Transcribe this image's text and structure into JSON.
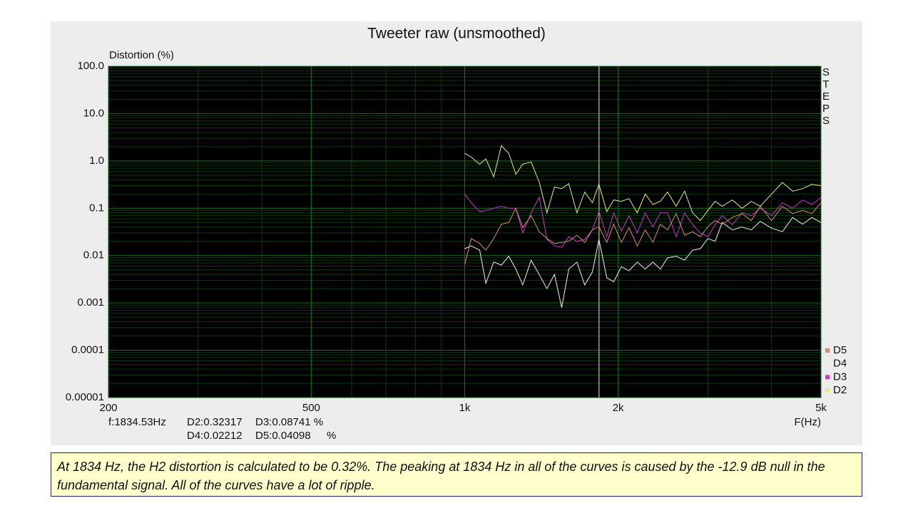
{
  "chart_data": {
    "type": "line",
    "title": "Tweeter raw (unsmoothed)",
    "y_label": "Distortion (%)",
    "x_label": "F(Hz)",
    "side_label": "STEPS",
    "log_x": true,
    "log_y": true,
    "grid": true,
    "legend": "bottom-right",
    "xlim": [
      200,
      5000
    ],
    "ylim": [
      1e-05,
      100
    ],
    "xticks": [
      200,
      500,
      {
        "value": 1000,
        "label": "1k"
      },
      {
        "value": 2000,
        "label": "2k"
      },
      {
        "value": 5000,
        "label": "5k"
      }
    ],
    "yticks": [
      1e-05,
      0.0001,
      0.001,
      0.01,
      0.1,
      {
        "value": 1,
        "label": "1.0"
      },
      {
        "value": 10,
        "label": "10.0"
      },
      {
        "value": 100,
        "label": "100.0"
      }
    ],
    "xminor": [
      300,
      400,
      600,
      700,
      800,
      900,
      3000,
      4000
    ],
    "yminor": [
      2e-05,
      3e-05,
      4e-05,
      5e-05,
      6e-05,
      7e-05,
      8e-05,
      9e-05,
      0.0002,
      0.0003,
      0.0004,
      0.0005,
      0.0006,
      0.0007,
      0.0008,
      0.0009,
      0.002,
      0.003,
      0.004,
      0.005,
      0.006,
      0.007,
      0.008,
      0.009,
      0.02,
      0.03,
      0.04,
      0.05,
      0.06,
      0.07,
      0.08,
      0.09,
      0.2,
      0.3,
      0.4,
      0.5,
      0.6,
      0.7,
      0.8,
      0.9,
      2,
      3,
      4,
      5,
      6,
      7,
      8,
      9,
      20,
      30,
      40,
      50,
      60,
      70,
      80,
      90
    ],
    "cursor_x": 1834.53,
    "cursor_color": "#c8c878",
    "readout": [
      "f:1834.53Hz",
      "D2:0.32317",
      "D3:0.08741 %",
      "D4:0.02212",
      "D5:0.04098",
      "%"
    ],
    "x": [
      1000,
      1030,
      1070,
      1100,
      1140,
      1180,
      1220,
      1260,
      1300,
      1350,
      1400,
      1450,
      1500,
      1550,
      1600,
      1660,
      1720,
      1780,
      1834,
      1900,
      1960,
      2030,
      2100,
      2180,
      2260,
      2340,
      2420,
      2500,
      2600,
      2700,
      2800,
      2900,
      3000,
      3100,
      3200,
      3350,
      3500,
      3650,
      3800,
      4000,
      4200,
      4400,
      4600,
      4800,
      5000
    ],
    "series": [
      {
        "name": "D5",
        "color": "#d88878",
        "values": [
          0.0065,
          0.023,
          0.018,
          0.013,
          0.023,
          0.046,
          0.05,
          0.1,
          0.039,
          0.07,
          0.032,
          0.023,
          0.018,
          0.019,
          0.02,
          0.027,
          0.019,
          0.035,
          0.041,
          0.019,
          0.046,
          0.019,
          0.039,
          0.016,
          0.035,
          0.019,
          0.046,
          0.035,
          0.077,
          0.027,
          0.032,
          0.025,
          0.041,
          0.055,
          0.046,
          0.064,
          0.077,
          0.055,
          0.11,
          0.055,
          0.11,
          0.077,
          0.09,
          0.077,
          0.13
        ]
      },
      {
        "name": "D4",
        "color": "#f0f0f0",
        "values": [
          0.014,
          0.016,
          0.013,
          0.0026,
          0.0073,
          0.0063,
          0.0097,
          0.0052,
          0.0024,
          0.008,
          0.004,
          0.002,
          0.004,
          0.0008,
          0.0052,
          0.0073,
          0.0024,
          0.0045,
          0.022,
          0.0034,
          0.0028,
          0.0058,
          0.0048,
          0.0073,
          0.0052,
          0.0073,
          0.0052,
          0.009,
          0.0097,
          0.008,
          0.013,
          0.014,
          0.023,
          0.02,
          0.05,
          0.035,
          0.04,
          0.035,
          0.053,
          0.038,
          0.032,
          0.064,
          0.046,
          0.064,
          0.05
        ]
      },
      {
        "name": "D3",
        "color": "#c838c8",
        "values": [
          0.2,
          0.13,
          0.085,
          0.09,
          0.1,
          0.11,
          0.1,
          0.1,
          0.03,
          0.08,
          0.17,
          0.022,
          0.016,
          0.015,
          0.025,
          0.02,
          0.022,
          0.035,
          0.087,
          0.025,
          0.08,
          0.033,
          0.07,
          0.03,
          0.08,
          0.04,
          0.08,
          0.08,
          0.025,
          0.08,
          0.045,
          0.03,
          0.025,
          0.045,
          0.07,
          0.045,
          0.08,
          0.07,
          0.1,
          0.07,
          0.13,
          0.1,
          0.15,
          0.12,
          0.17
        ]
      },
      {
        "name": "D2",
        "color": "#e8e890",
        "values": [
          1.45,
          1.2,
          0.85,
          1.1,
          0.46,
          2.1,
          1.45,
          0.52,
          0.85,
          0.95,
          0.36,
          0.08,
          0.28,
          0.26,
          0.33,
          0.08,
          0.22,
          0.13,
          0.32,
          0.085,
          0.15,
          0.14,
          0.16,
          0.08,
          0.2,
          0.12,
          0.14,
          0.22,
          0.11,
          0.23,
          0.08,
          0.055,
          0.09,
          0.14,
          0.11,
          0.15,
          0.1,
          0.14,
          0.11,
          0.2,
          0.35,
          0.23,
          0.26,
          0.32,
          0.3
        ]
      }
    ]
  },
  "caption": "At 1834 Hz, the H2 distortion is calculated to be 0.32%.  The peaking at 1834 Hz in all of the curves is caused by the -12.9 dB null in the fundamental signal.  All of the curves have a lot of ripple."
}
